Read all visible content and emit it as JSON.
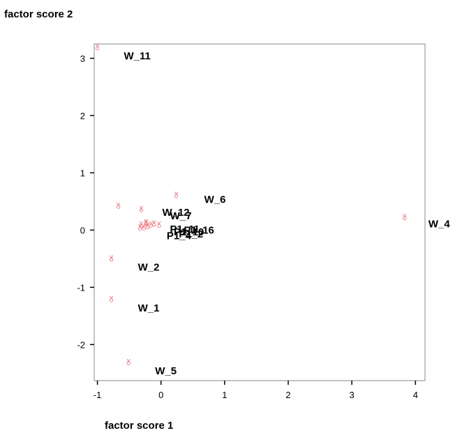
{
  "chart_data": {
    "type": "scatter",
    "xlabel": "factor score  1",
    "ylabel": "factor score  2",
    "xlim": [
      -1.05,
      4.15
    ],
    "ylim": [
      -2.63,
      3.25
    ],
    "x_ticks": [
      -1,
      0,
      1,
      2,
      3,
      4
    ],
    "y_ticks": [
      -2,
      -1,
      0,
      1,
      2,
      3
    ],
    "grid": false,
    "marker_color": "#e8737a",
    "label_color": "#000000",
    "labeled_points": [
      {
        "label": "W_11",
        "x": -1.0,
        "y": 3.2
      },
      {
        "label": "W_4",
        "x": 3.83,
        "y": 0.23
      },
      {
        "label": "W_6",
        "x": 0.24,
        "y": 0.62
      },
      {
        "label": "W_12",
        "x": -0.31,
        "y": 0.37
      },
      {
        "label": "W_7",
        "x": -0.23,
        "y": 0.14
      },
      {
        "label": "W_2",
        "x": -0.78,
        "y": -0.49
      },
      {
        "label": "W_1",
        "x": -0.78,
        "y": -1.2
      },
      {
        "label": "W_5",
        "x": -0.51,
        "y": -2.3
      }
    ],
    "cluster_labels": [
      "P1_11",
      "P1_16",
      "P1_10",
      "P1_4",
      "P1_2"
    ],
    "unlabeled_points": [
      {
        "x": -0.67,
        "y": 0.43
      },
      {
        "x": -0.33,
        "y": 0.05
      },
      {
        "x": -0.31,
        "y": 0.1
      },
      {
        "x": -0.27,
        "y": 0.05
      },
      {
        "x": -0.24,
        "y": 0.13
      },
      {
        "x": -0.21,
        "y": 0.07
      },
      {
        "x": -0.16,
        "y": 0.1
      },
      {
        "x": -0.11,
        "y": 0.12
      },
      {
        "x": -0.03,
        "y": 0.1
      }
    ]
  }
}
